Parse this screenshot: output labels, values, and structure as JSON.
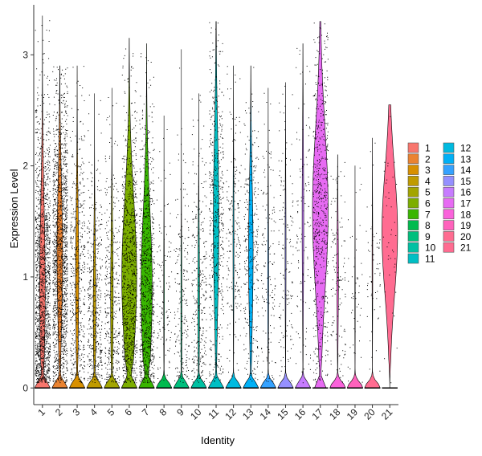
{
  "chart_data": {
    "type": "violin",
    "xlabel": "Identity",
    "ylabel": "Expression Level",
    "ylim": [
      -0.15,
      3.45
    ],
    "yticks": [
      0,
      1,
      2,
      3
    ],
    "grid": false,
    "legend_position": "right",
    "legend_columns": 2,
    "jitter_points": true,
    "categories": [
      "1",
      "2",
      "3",
      "4",
      "5",
      "6",
      "7",
      "8",
      "9",
      "10",
      "11",
      "12",
      "13",
      "14",
      "15",
      "16",
      "17",
      "18",
      "19",
      "20",
      "21"
    ],
    "colors": [
      "#F8766D",
      "#EA8331",
      "#D89000",
      "#C09B00",
      "#A3A500",
      "#7CAE00",
      "#39B600",
      "#00BB4E",
      "#00BF7D",
      "#00C1A3",
      "#00BFC4",
      "#00BAE0",
      "#00B0F6",
      "#35A2FF",
      "#9590FF",
      "#C77CFF",
      "#E76BF3",
      "#FA62DB",
      "#FF62BC",
      "#FF6C91",
      "#FF6C91"
    ],
    "series": [
      {
        "name": "1",
        "max": 3.35,
        "nonzero_fraction": 0.6,
        "median_nonzero": 0.9,
        "points": 1500
      },
      {
        "name": "2",
        "max": 2.9,
        "nonzero_fraction": 0.6,
        "median_nonzero": 1.2,
        "points": 1500
      },
      {
        "name": "3",
        "max": 2.9,
        "nonzero_fraction": 0.45,
        "median_nonzero": 1.0,
        "points": 500
      },
      {
        "name": "4",
        "max": 2.65,
        "nonzero_fraction": 0.4,
        "median_nonzero": 0.7,
        "points": 450
      },
      {
        "name": "5",
        "max": 2.7,
        "nonzero_fraction": 0.4,
        "median_nonzero": 0.8,
        "points": 400
      },
      {
        "name": "6",
        "max": 3.15,
        "nonzero_fraction": 0.8,
        "median_nonzero": 1.0,
        "points": 1000
      },
      {
        "name": "7",
        "max": 3.1,
        "nonzero_fraction": 0.75,
        "median_nonzero": 0.9,
        "points": 850
      },
      {
        "name": "8",
        "max": 2.45,
        "nonzero_fraction": 0.15,
        "median_nonzero": 0.8,
        "points": 120
      },
      {
        "name": "9",
        "max": 3.05,
        "nonzero_fraction": 0.2,
        "median_nonzero": 0.6,
        "points": 200
      },
      {
        "name": "10",
        "max": 2.65,
        "nonzero_fraction": 0.3,
        "median_nonzero": 0.8,
        "points": 300
      },
      {
        "name": "11",
        "max": 3.3,
        "nonzero_fraction": 0.6,
        "median_nonzero": 1.5,
        "points": 500
      },
      {
        "name": "12",
        "max": 2.9,
        "nonzero_fraction": 0.2,
        "median_nonzero": 1.3,
        "points": 200
      },
      {
        "name": "13",
        "max": 2.9,
        "nonzero_fraction": 0.55,
        "median_nonzero": 1.2,
        "points": 300
      },
      {
        "name": "14",
        "max": 2.7,
        "nonzero_fraction": 0.2,
        "median_nonzero": 1.0,
        "points": 150
      },
      {
        "name": "15",
        "max": 2.75,
        "nonzero_fraction": 0.2,
        "median_nonzero": 1.2,
        "points": 150
      },
      {
        "name": "16",
        "max": 3.1,
        "nonzero_fraction": 0.3,
        "median_nonzero": 1.5,
        "points": 120
      },
      {
        "name": "17",
        "max": 3.3,
        "nonzero_fraction": 0.85,
        "median_nonzero": 1.6,
        "points": 600
      },
      {
        "name": "18",
        "max": 2.1,
        "nonzero_fraction": 0.3,
        "median_nonzero": 1.0,
        "points": 130
      },
      {
        "name": "19",
        "max": 2.0,
        "nonzero_fraction": 0.1,
        "median_nonzero": 0.8,
        "points": 50
      },
      {
        "name": "20",
        "max": 2.25,
        "nonzero_fraction": 0.15,
        "median_nonzero": 1.1,
        "points": 60
      },
      {
        "name": "21",
        "max": 2.55,
        "nonzero_fraction": 1.0,
        "median_nonzero": 1.4,
        "points": 40
      }
    ]
  }
}
